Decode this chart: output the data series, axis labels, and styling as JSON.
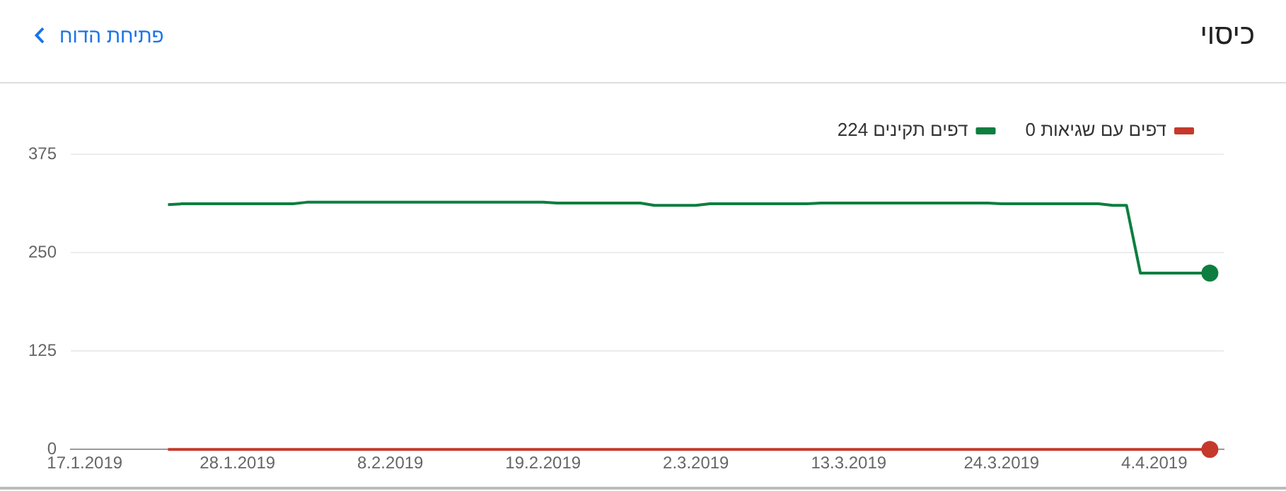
{
  "chart_data": {
    "type": "line",
    "title": "כיסוי",
    "annotations": [
      "פתיחת הדוח"
    ],
    "xlim": [
      "2019-01-16",
      "2019-04-09"
    ],
    "xticks": [
      {
        "value": "2019-01-17",
        "label": "17.1.2019"
      },
      {
        "value": "2019-01-28",
        "label": "28.1.2019"
      },
      {
        "value": "2019-02-08",
        "label": "8.2.2019"
      },
      {
        "value": "2019-02-19",
        "label": "19.2.2019"
      },
      {
        "value": "2019-03-02",
        "label": "2.3.2019"
      },
      {
        "value": "2019-03-13",
        "label": "13.3.2019"
      },
      {
        "value": "2019-03-24",
        "label": "24.3.2019"
      },
      {
        "value": "2019-04-04",
        "label": "4.4.2019"
      }
    ],
    "ylim": [
      0,
      375
    ],
    "yticks": [
      0,
      125,
      250,
      375
    ],
    "grid": "y",
    "legend": "top right",
    "line_style": "solid",
    "series": [
      {
        "name": "0 דפים עם שגיאות",
        "color": "#c5392b",
        "x": [
          "2019-01-23",
          "2019-04-08"
        ],
        "values": [
          0,
          0
        ]
      },
      {
        "name": "224 דפים תקינים",
        "color": "#0d7e3f",
        "x": [
          "2019-01-23",
          "2019-01-24",
          "2019-02-01",
          "2019-02-02",
          "2019-02-19",
          "2019-02-20",
          "2019-02-26",
          "2019-02-27",
          "2019-03-02",
          "2019-03-03",
          "2019-03-10",
          "2019-03-11",
          "2019-03-23",
          "2019-03-24",
          "2019-03-31",
          "2019-04-01",
          "2019-04-02",
          "2019-04-03",
          "2019-04-08"
        ],
        "values": [
          311,
          312,
          312,
          314,
          314,
          313,
          313,
          310,
          310,
          312,
          312,
          313,
          313,
          312,
          312,
          310,
          310,
          224,
          224
        ]
      },
      {
        "type": "scatter",
        "marker": "circle",
        "color": "#c5392b",
        "x": [
          "2019-04-08"
        ],
        "values": [
          0
        ]
      },
      {
        "type": "scatter",
        "marker": "circle",
        "color": "#0d7e3f",
        "x": [
          "2019-04-08"
        ],
        "values": [
          224
        ]
      }
    ]
  }
}
